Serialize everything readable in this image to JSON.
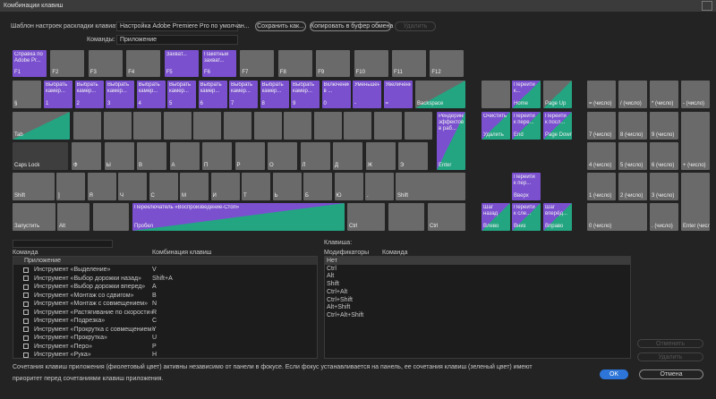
{
  "title": "Комбинации клавиш",
  "toolbar": {
    "preset_label": "Шаблон настроек раскладки клавиатуры:",
    "preset_value": "Настройка Adobe Premiere Pro по умолчан...",
    "save_as": "Сохранить как...",
    "copy": "Копировать в буфер обмена",
    "delete": "Удалить",
    "commands_label": "Команды:",
    "commands_value": "Приложение"
  },
  "keyboard": {
    "keys": [
      {
        "key": "F1",
        "command": "Справка по Adobe Pr...",
        "state": "app"
      },
      {
        "key": "F2"
      },
      {
        "key": "F3"
      },
      {
        "key": "F4"
      },
      {
        "key": "F5",
        "command": "Захват...",
        "state": "app"
      },
      {
        "key": "F6",
        "command": "Пакетный захват...",
        "state": "app"
      },
      {
        "key": "F7"
      },
      {
        "key": "F8"
      },
      {
        "key": "F9"
      },
      {
        "key": "F10"
      },
      {
        "key": "F11"
      },
      {
        "key": "F12"
      },
      {
        "key": "§"
      },
      {
        "key": "1",
        "command": "Выбрать камер...",
        "state": "app"
      },
      {
        "key": "2",
        "command": "Выбрать камер...",
        "state": "app"
      },
      {
        "key": "3",
        "command": "Выбрать камер...",
        "state": "app"
      },
      {
        "key": "4",
        "command": "Выбрать камер...",
        "state": "app"
      },
      {
        "key": "5",
        "command": "Выбрать камер...",
        "state": "app"
      },
      {
        "key": "6",
        "command": "Выбрать камер...",
        "state": "app"
      },
      {
        "key": "7",
        "command": "Выбрать камер...",
        "state": "app"
      },
      {
        "key": "8",
        "command": "Выбрать камер...",
        "state": "app"
      },
      {
        "key": "9",
        "command": "Выбрать камер...",
        "state": "app"
      },
      {
        "key": "0",
        "command": "Включение в ...",
        "state": "app"
      },
      {
        "key": "-",
        "command": "Уменьшение",
        "state": "app"
      },
      {
        "key": "=",
        "command": "Увеличение",
        "state": "app"
      },
      {
        "key": "Backspace",
        "state": "panel"
      },
      {
        "key": "Tab",
        "state": "panel"
      },
      {
        "key": "Enter",
        "command": "Рендеринг эффектов в раб...",
        "state": "both"
      },
      {
        "key": "Caps Lock",
        "state": "dark"
      },
      {
        "key": "Ф"
      },
      {
        "key": "Ы"
      },
      {
        "key": "В"
      },
      {
        "key": "А"
      },
      {
        "key": "П"
      },
      {
        "key": "Р"
      },
      {
        "key": "О"
      },
      {
        "key": "Л"
      },
      {
        "key": "Д"
      },
      {
        "key": "Ж"
      },
      {
        "key": "Э"
      },
      {
        "key": "Shift"
      },
      {
        "key": "]"
      },
      {
        "key": "Я"
      },
      {
        "key": "Ч"
      },
      {
        "key": "С"
      },
      {
        "key": "М"
      },
      {
        "key": "И"
      },
      {
        "key": "Т"
      },
      {
        "key": "Ь"
      },
      {
        "key": "Б"
      },
      {
        "key": "Ю"
      },
      {
        "key": "."
      },
      {
        "key": "Shift"
      },
      {
        "key": "Запустить"
      },
      {
        "key": "Alt"
      },
      {
        "key": "Пробел",
        "command": "Переключатель «Воспроизведение-Стоп»",
        "state": "both"
      },
      {
        "key": "Ctrl"
      },
      {
        "key": "Ctrl"
      },
      {
        "key": "Home",
        "command": "Перейти к...",
        "state": "both"
      },
      {
        "key": "Page Up",
        "state": "panel"
      },
      {
        "key": "Удалить",
        "command": "Очистить",
        "state": "both"
      },
      {
        "key": "End",
        "command": "Перейти к пере...",
        "state": "both"
      },
      {
        "key": "Page Down",
        "command": "Перейти к посл...",
        "state": "both"
      },
      {
        "key": "Вверх",
        "command": "Перейти к пер...",
        "state": "app"
      },
      {
        "key": "Влево",
        "command": "Шаг назад",
        "state": "both"
      },
      {
        "key": "Вниз",
        "command": "Перейти к сле...",
        "state": "both"
      },
      {
        "key": "Вправо",
        "command": "Шаг вперёд...",
        "state": "both"
      },
      {
        "key": "= (число)"
      },
      {
        "key": "/ (число)"
      },
      {
        "key": "* (число)"
      },
      {
        "key": "- (число)"
      },
      {
        "key": "7 (число)"
      },
      {
        "key": "8 (число)"
      },
      {
        "key": "9 (число)"
      },
      {
        "key": "+ (число)"
      },
      {
        "key": "4 (число)"
      },
      {
        "key": "5 (число)"
      },
      {
        "key": "6 (число)"
      },
      {
        "key": "1 (число)"
      },
      {
        "key": "2 (число)"
      },
      {
        "key": "3 (число)"
      },
      {
        "key": "Enter (число)"
      },
      {
        "key": "0 (число)"
      },
      {
        "key": ". (число)"
      }
    ]
  },
  "command_list": {
    "headers": [
      "Команда",
      "Комбинация клавиш"
    ],
    "group": "Приложение",
    "rows": [
      {
        "name": "Инструмент «Выделение»",
        "shortcut": "V"
      },
      {
        "name": "Инструмент «Выбор дорожки назад»",
        "shortcut": "Shift+A"
      },
      {
        "name": "Инструмент «Выбор дорожки вперед»",
        "shortcut": "A"
      },
      {
        "name": "Инструмент «Монтаж со сдвигом»",
        "shortcut": "B"
      },
      {
        "name": "Инструмент «Монтаж с совмещением»",
        "shortcut": "N"
      },
      {
        "name": "Инструмент «Растягивание по скорости»",
        "shortcut": "R"
      },
      {
        "name": "Инструмент «Подрезка»",
        "shortcut": "C"
      },
      {
        "name": "Инструмент «Прокрутка с совмещением»",
        "shortcut": "Y"
      },
      {
        "name": "Инструмент «Прокрутка»",
        "shortcut": "U"
      },
      {
        "name": "Инструмент «Перо»",
        "shortcut": "P"
      },
      {
        "name": "Инструмент «Рука»",
        "shortcut": "H"
      }
    ]
  },
  "key_panel": {
    "label": "Клавиша:",
    "headers": [
      "Модификаторы",
      "Команда"
    ],
    "modifiers": [
      "Нет",
      "Ctrl",
      "Alt",
      "Shift",
      "Ctrl+Alt",
      "Ctrl+Shift",
      "Alt+Shift",
      "Ctrl+Alt+Shift"
    ]
  },
  "buttons": {
    "undo": "Отменить",
    "clear": "Удалить",
    "ok": "OK",
    "cancel": "Отмена"
  },
  "footer": [
    "Сочетания клавиш приложения (фиолетовый цвет) активны независимо от панели в фокусе. Если фокус устанавливается на панель, ее сочетания клавиш (зеленый цвет) имеют",
    "приоритет перед сочетаниями клавиш приложения."
  ]
}
